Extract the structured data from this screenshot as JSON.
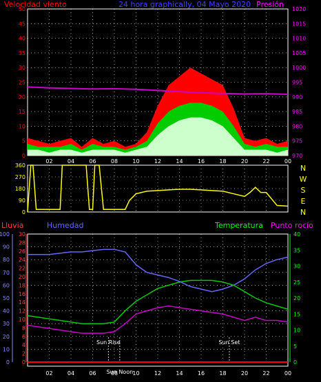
{
  "header": {
    "wind_title": "Velocidad viento",
    "center_title": "24 hora graphically, 04 Mayo 2020",
    "pressure_title": "Presión"
  },
  "legend": {
    "rain": "Lluvia",
    "humidity": "Humedad",
    "temperature": "Temperatura",
    "dewpoint": "Punto rocío"
  },
  "colors": {
    "wind_gust": "#ff0000",
    "wind_avg_max": "#00cc00",
    "wind_avg": "#ccffcc",
    "wind_dir": "#ffff00",
    "pressure": "#cc00cc",
    "humidity": "#6666ff",
    "temperature": "#00cc00",
    "dewpoint": "#cc00cc",
    "rain": "#ff0000",
    "grid": "#ffffff",
    "axis_rain": "#8888ff",
    "axis_temp": "#00ff00",
    "axis_wind": "#ff0000"
  },
  "annotations": {
    "sunrise": "Sun Rise",
    "sunset": "Sun Set",
    "noon": "Sun Noon"
  },
  "chart_data": [
    {
      "type": "area",
      "name": "wind-speed",
      "ylim": [
        0,
        50
      ],
      "yticks": [
        "0",
        "5",
        "10",
        "15",
        "20",
        "25",
        "30",
        "35",
        "40",
        "45",
        "50"
      ],
      "xticks": [
        "02",
        "04",
        "06",
        "08",
        "10",
        "12",
        "14",
        "16",
        "18",
        "20",
        "22",
        "00"
      ],
      "x": [
        0,
        1,
        2,
        3,
        4,
        5,
        6,
        7,
        8,
        9,
        10,
        11,
        12,
        13,
        14,
        15,
        16,
        17,
        18,
        19,
        20,
        21,
        22,
        23,
        24
      ],
      "gust": [
        6,
        5,
        4,
        5,
        6,
        3,
        6,
        4,
        5,
        3,
        4,
        8,
        17,
        24,
        27,
        30,
        28,
        26,
        24,
        16,
        6,
        5,
        6,
        4,
        5
      ],
      "avg_max": [
        4,
        3,
        3,
        3,
        4,
        2,
        4,
        3,
        3,
        2,
        3,
        5,
        11,
        15,
        17,
        18,
        18,
        17,
        15,
        10,
        4,
        3,
        4,
        3,
        3
      ],
      "avg": [
        2,
        2,
        1,
        2,
        2,
        1,
        2,
        2,
        2,
        1,
        2,
        3,
        7,
        10,
        12,
        13,
        13,
        12,
        10,
        6,
        2,
        2,
        2,
        1,
        2
      ]
    },
    {
      "type": "line",
      "name": "pressure",
      "ylim": [
        970,
        1020
      ],
      "yticks": [
        "970",
        "975",
        "980",
        "985",
        "990",
        "995",
        "1000",
        "1005",
        "1010",
        "1015",
        "1020"
      ],
      "x": [
        0,
        2,
        4,
        6,
        8,
        10,
        12,
        14,
        16,
        18,
        20,
        22,
        24
      ],
      "values": [
        993.4,
        993.1,
        992.9,
        992.7,
        992.8,
        992.6,
        992.2,
        991.8,
        991.4,
        991.2,
        991.0,
        991.1,
        990.9
      ]
    },
    {
      "type": "line",
      "name": "wind-direction",
      "ylim": [
        0,
        360
      ],
      "yticks": [
        "0",
        "90",
        "180",
        "270",
        "360"
      ],
      "compass": [
        "N",
        "W",
        "S",
        "E",
        "N"
      ],
      "x": [
        0,
        0.3,
        0.5,
        0.8,
        1.2,
        2.5,
        3.0,
        3.2,
        5.4,
        5.7,
        6.0,
        6.2,
        6.6,
        7.0,
        8.0,
        9.0,
        9.4,
        10,
        11,
        12,
        13,
        14,
        15,
        16,
        17,
        18,
        19,
        20,
        20.5,
        21,
        21.5,
        22,
        23,
        24
      ],
      "values": [
        0,
        360,
        360,
        20,
        20,
        20,
        20,
        360,
        360,
        20,
        20,
        360,
        360,
        20,
        20,
        20,
        90,
        140,
        160,
        165,
        170,
        175,
        175,
        170,
        165,
        160,
        140,
        120,
        150,
        190,
        150,
        150,
        50,
        45
      ]
    },
    {
      "type": "line",
      "name": "weather",
      "ylim_left": [
        0,
        100
      ],
      "yticks_humidity": [
        "0",
        "10",
        "20",
        "30",
        "40",
        "50",
        "60",
        "70",
        "80",
        "90",
        "100"
      ],
      "yticks_rain": [
        "0",
        "2",
        "4",
        "6",
        "8",
        "10",
        "12",
        "14",
        "16",
        "18",
        "20",
        "22",
        "24",
        "26",
        "28",
        "30"
      ],
      "ylim_temp": [
        0,
        40
      ],
      "yticks_temp": [
        "0",
        "5",
        "10",
        "15",
        "20",
        "25",
        "30",
        "35",
        "40"
      ],
      "x": [
        0,
        1,
        2,
        3,
        4,
        5,
        6,
        7,
        8,
        9,
        10,
        11,
        12,
        13,
        14,
        15,
        16,
        17,
        18,
        19,
        20,
        21,
        22,
        23,
        24
      ],
      "humidity": [
        84,
        84,
        84,
        85,
        86,
        86,
        87,
        88,
        88,
        86,
        76,
        70,
        68,
        66,
        63,
        59,
        57,
        55,
        57,
        60,
        65,
        72,
        77,
        80,
        82
      ],
      "temperature": [
        14.5,
        14,
        13.5,
        13,
        12.5,
        12,
        12,
        12,
        12.5,
        16,
        19,
        21,
        23,
        24,
        25,
        25.5,
        25.5,
        25.5,
        25,
        24,
        22,
        20,
        18.5,
        17.5,
        16.5
      ],
      "dewpoint": [
        11.5,
        11,
        10.5,
        10,
        9.5,
        9,
        9,
        9,
        9.5,
        12,
        15,
        16,
        17,
        17.5,
        17,
        16.5,
        16,
        15.5,
        15,
        14,
        13,
        14,
        13,
        13,
        12.5
      ],
      "rain": [
        0,
        0,
        0,
        0,
        0,
        0,
        0,
        0,
        0,
        0,
        0,
        0,
        0,
        0,
        0,
        0,
        0,
        0,
        0,
        0,
        0,
        0,
        0,
        0,
        0
      ]
    }
  ]
}
